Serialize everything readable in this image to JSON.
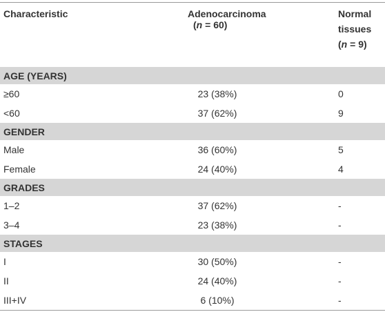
{
  "table": {
    "header": {
      "characteristic": "Characteristic",
      "adeno": {
        "label": "Adenocarcinoma",
        "open": "(",
        "n": "n",
        "count": " = 60)"
      },
      "normal": {
        "label": "Normal tissues",
        "open": "(",
        "n": "n",
        "count": " = 9)"
      }
    },
    "sections": [
      {
        "title": "AGE (YEARS)",
        "rows": [
          [
            "≥60",
            "23 (38%)",
            "0"
          ],
          [
            "<60",
            "37 (62%)",
            "9"
          ]
        ]
      },
      {
        "title": "GENDER",
        "rows": [
          [
            "Male",
            "36 (60%)",
            "5"
          ],
          [
            "Female",
            "24 (40%)",
            "4"
          ]
        ]
      },
      {
        "title": "GRADES",
        "rows": [
          [
            "1–2",
            "37 (62%)",
            "-"
          ],
          [
            "3–4",
            "23 (38%)",
            "-"
          ]
        ]
      },
      {
        "title": "STAGES",
        "rows": [
          [
            "I",
            "30 (50%)",
            "-"
          ],
          [
            "II",
            "24 (40%)",
            "-"
          ],
          [
            "III+IV",
            "6 (10%)",
            "-"
          ]
        ]
      }
    ]
  }
}
